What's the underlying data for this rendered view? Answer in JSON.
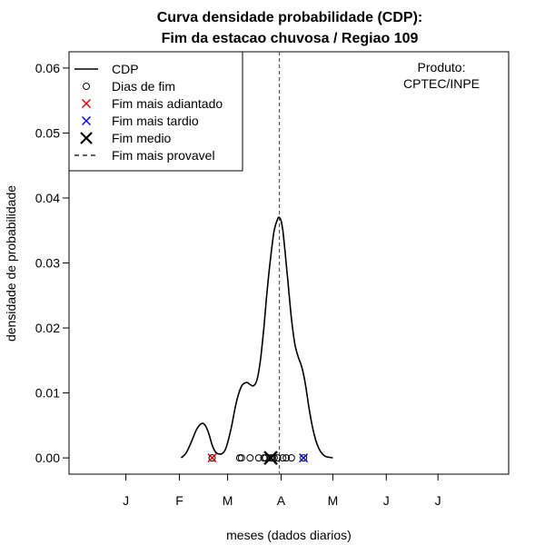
{
  "chart_data": {
    "type": "line",
    "title": [
      "Curva densidade probabilidade (CDP):",
      "Fim da estacao chuvosa / Regiao 109"
    ],
    "xlabel": "meses (dados diarios)",
    "ylabel": "densidade de probabilidade",
    "annotation": [
      "Produto:",
      "CPTEC/INPE"
    ],
    "x_unit": "days since 1 Jan",
    "xlim": [
      -33,
      222
    ],
    "ylim": [
      -0.0025,
      0.0625
    ],
    "y_ticks": [
      0.0,
      0.01,
      0.02,
      0.03,
      0.04,
      0.05,
      0.06
    ],
    "y_tick_labels": [
      "0.00",
      "0.01",
      "0.02",
      "0.03",
      "0.04",
      "0.05",
      "0.06"
    ],
    "x_ticks": [
      0,
      31,
      59,
      90,
      120,
      151,
      181
    ],
    "x_tick_labels": [
      "J",
      "F",
      "M",
      "A",
      "M",
      "J",
      "J"
    ],
    "legend": {
      "position": "top-left",
      "entries": [
        {
          "label": "CDP",
          "symbol": "line",
          "color": "#000000"
        },
        {
          "label": "Dias de fim",
          "symbol": "o",
          "color": "#000000"
        },
        {
          "label": "Fim mais adiantado",
          "symbol": "x",
          "color": "#dd0000"
        },
        {
          "label": "Fim mais tardio",
          "symbol": "x",
          "color": "#0000dd"
        },
        {
          "label": "Fim medio",
          "symbol": "X",
          "color": "#000000"
        },
        {
          "label": "Fim mais provavel",
          "symbol": "dash",
          "color": "#000000"
        }
      ]
    },
    "series": [
      {
        "name": "CDP",
        "x": [
          32,
          35,
          38,
          41,
          44,
          46,
          48,
          50,
          52,
          54,
          56,
          58,
          61,
          64,
          67,
          70,
          72,
          74,
          76,
          78,
          80,
          82,
          84,
          86,
          88,
          89,
          90,
          91,
          92,
          94,
          96,
          98,
          100,
          102,
          104,
          106,
          108,
          110,
          112,
          114,
          116,
          118,
          120
        ],
        "y": [
          0.0,
          0.0008,
          0.0025,
          0.0044,
          0.0053,
          0.005,
          0.0038,
          0.002,
          0.0009,
          0.0006,
          0.0007,
          0.0015,
          0.0045,
          0.0085,
          0.011,
          0.0116,
          0.0113,
          0.0111,
          0.012,
          0.015,
          0.02,
          0.026,
          0.031,
          0.035,
          0.0368,
          0.037,
          0.0365,
          0.035,
          0.0325,
          0.027,
          0.0215,
          0.0175,
          0.0155,
          0.014,
          0.0115,
          0.008,
          0.005,
          0.0028,
          0.0014,
          0.0006,
          0.0002,
          0.0001,
          0.0
        ]
      }
    ],
    "end_days": [
      66,
      67,
      72,
      77,
      80,
      81,
      84,
      85,
      86,
      88,
      91,
      93,
      96
    ],
    "earliest_end": 50,
    "latest_end": 103,
    "mean_end": 84,
    "most_probable_end": 89
  }
}
